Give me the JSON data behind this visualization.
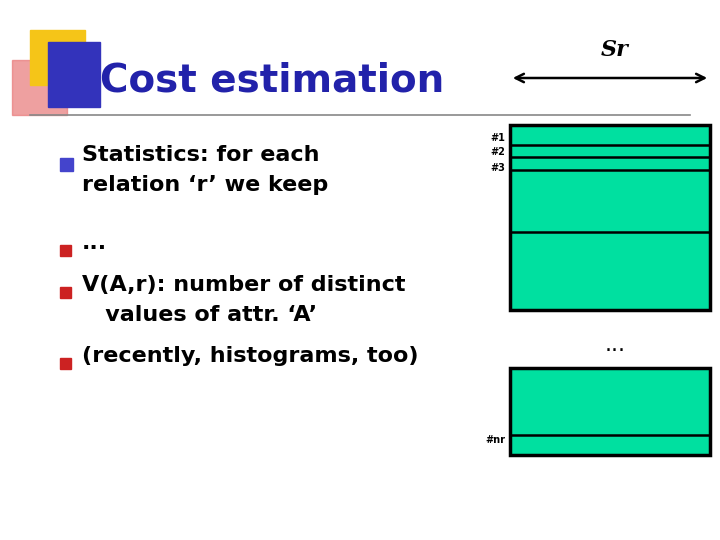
{
  "title": "Cost estimation",
  "title_color": "#2222aa",
  "background_color": "#ffffff",
  "sr_label": "Sr",
  "bullet1_color": "#4444cc",
  "bullet1_text1": "Statistics: for each",
  "bullet1_text2": "relation ‘r’ we keep",
  "sub_bullet_color": "#cc2222",
  "row_labels_top": [
    "#1",
    "#2",
    "#3"
  ],
  "last_label": "#nr",
  "ellipsis_label": "...",
  "cyan_color": "#00e0a0",
  "block_border_color": "#000000",
  "line_color": "#888888",
  "logo_yellow": "#f5c518",
  "logo_pink": "#e87878",
  "logo_blue": "#3333bb",
  "arrow_color": "#000000",
  "figw": 7.2,
  "figh": 5.4,
  "dpi": 100
}
